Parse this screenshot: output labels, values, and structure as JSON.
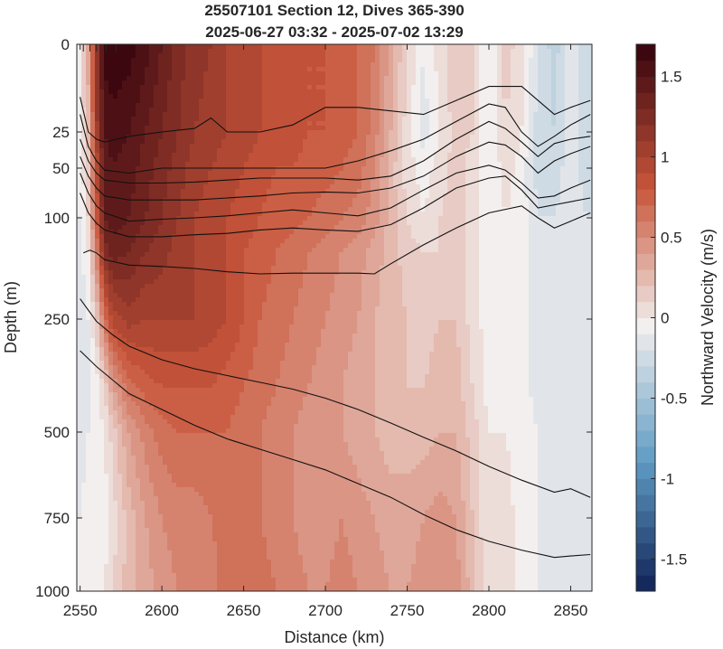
{
  "chart_data": {
    "type": "heatmap",
    "title": [
      "25507101 Section 12, Dives 365-390",
      "2025-06-27 03:32 - 2025-07-02 13:29"
    ],
    "xlabel": "Distance (km)",
    "ylabel": "Depth (m)",
    "xlim": [
      2548,
      2863
    ],
    "ylim_depth_ticks": [
      0,
      25,
      50,
      100,
      250,
      500,
      750,
      1000
    ],
    "xticks": [
      2550,
      2600,
      2650,
      2700,
      2750,
      2800,
      2850
    ],
    "colorbar": {
      "label": "Northward Velocity (m/s)",
      "range": [
        -1.7,
        1.7
      ],
      "ticks": [
        -1.5,
        -1,
        -0.5,
        0,
        0.5,
        1,
        1.5
      ],
      "tick_labels": [
        "-1.5",
        "-1",
        "-0.5",
        "0",
        "0.5",
        "1",
        "1.5"
      ],
      "colors": {
        "negative_end": "#0b1a4f",
        "mid_blue": "#5e9bc4",
        "zero": "#f2efee",
        "mid_red": "#c9563a",
        "positive_end": "#3d0710"
      }
    },
    "field": {
      "x": [
        2550,
        2555,
        2560,
        2565,
        2570,
        2580,
        2590,
        2600,
        2610,
        2620,
        2630,
        2640,
        2650,
        2660,
        2670,
        2680,
        2690,
        2700,
        2710,
        2720,
        2730,
        2740,
        2750,
        2760,
        2770,
        2780,
        2790,
        2800,
        2810,
        2820,
        2830,
        2840,
        2850,
        2860
      ],
      "depth": [
        0,
        25,
        50,
        100,
        150,
        250,
        400,
        500,
        750,
        1000
      ],
      "values": [
        [
          0.05,
          0.4,
          1.2,
          1.7,
          1.75,
          1.7,
          1.6,
          1.45,
          1.3,
          1.2,
          1.15,
          1.05,
          1.0,
          0.95,
          0.9,
          0.9,
          0.85,
          0.85,
          0.8,
          0.75,
          0.65,
          0.4,
          0.15,
          -0.05,
          0.1,
          0.25,
          0.15,
          -0.05,
          0.2,
          0.1,
          -0.15,
          -0.3,
          -0.1,
          -0.2
        ],
        [
          0.0,
          0.3,
          1.1,
          1.55,
          1.6,
          1.55,
          1.45,
          1.35,
          1.25,
          1.15,
          1.1,
          1.05,
          1.0,
          0.95,
          0.9,
          0.9,
          0.85,
          0.85,
          0.8,
          0.75,
          0.6,
          0.35,
          0.1,
          -0.1,
          0.05,
          0.2,
          0.15,
          -0.05,
          0.15,
          0.05,
          -0.2,
          -0.25,
          -0.1,
          -0.2
        ],
        [
          -0.05,
          0.2,
          0.95,
          1.5,
          1.55,
          1.5,
          1.4,
          1.3,
          1.2,
          1.1,
          1.05,
          1.0,
          0.95,
          0.9,
          0.85,
          0.85,
          0.8,
          0.8,
          0.75,
          0.7,
          0.55,
          0.3,
          0.1,
          0.0,
          0.1,
          0.2,
          0.1,
          -0.05,
          0.1,
          0.0,
          -0.2,
          -0.2,
          -0.1,
          -0.2
        ],
        [
          -0.05,
          0.15,
          0.85,
          1.45,
          1.5,
          1.45,
          1.35,
          1.25,
          1.15,
          1.05,
          1.0,
          0.95,
          0.9,
          0.85,
          0.8,
          0.8,
          0.75,
          0.7,
          0.65,
          0.6,
          0.5,
          0.3,
          0.15,
          0.05,
          0.15,
          0.2,
          0.1,
          -0.05,
          0.05,
          0.0,
          -0.15,
          -0.15,
          -0.1,
          -0.15
        ],
        [
          -0.1,
          0.05,
          0.6,
          1.3,
          1.4,
          1.35,
          1.25,
          1.2,
          1.1,
          1.05,
          1.0,
          0.95,
          0.85,
          0.8,
          0.75,
          0.7,
          0.65,
          0.6,
          0.55,
          0.5,
          0.4,
          0.3,
          0.2,
          0.15,
          0.15,
          0.2,
          0.1,
          0.0,
          0.05,
          0.0,
          -0.1,
          -0.15,
          -0.1,
          -0.1
        ],
        [
          -0.1,
          -0.05,
          0.2,
          0.7,
          1.0,
          1.1,
          1.05,
          1.05,
          1.05,
          1.05,
          1.0,
          0.95,
          0.85,
          0.75,
          0.7,
          0.65,
          0.6,
          0.55,
          0.5,
          0.45,
          0.35,
          0.3,
          0.25,
          0.2,
          0.25,
          0.25,
          0.1,
          0.0,
          0.05,
          0.0,
          -0.1,
          -0.1,
          -0.1,
          -0.1
        ],
        [
          -0.15,
          -0.1,
          0.0,
          0.15,
          0.45,
          0.7,
          0.8,
          0.85,
          0.85,
          0.85,
          0.85,
          0.8,
          0.75,
          0.7,
          0.65,
          0.6,
          0.55,
          0.5,
          0.45,
          0.4,
          0.35,
          0.3,
          0.25,
          0.25,
          0.3,
          0.3,
          0.15,
          0.0,
          0.05,
          0.0,
          -0.1,
          -0.1,
          -0.15,
          -0.1
        ],
        [
          -0.1,
          -0.05,
          0.0,
          0.05,
          0.2,
          0.45,
          0.6,
          0.7,
          0.75,
          0.75,
          0.75,
          0.75,
          0.7,
          0.65,
          0.6,
          0.55,
          0.5,
          0.5,
          0.45,
          0.4,
          0.35,
          0.3,
          0.3,
          0.3,
          0.35,
          0.35,
          0.2,
          0.05,
          0.05,
          0.0,
          -0.05,
          -0.1,
          -0.15,
          -0.1
        ],
        [
          -0.05,
          0.0,
          -0.05,
          0.0,
          0.1,
          0.3,
          0.45,
          0.55,
          0.6,
          0.6,
          0.65,
          0.7,
          0.7,
          0.65,
          0.6,
          0.55,
          0.5,
          0.5,
          0.55,
          0.5,
          0.45,
          0.4,
          0.4,
          0.45,
          0.5,
          0.45,
          0.25,
          0.05,
          0.1,
          0.0,
          -0.05,
          -0.1,
          -0.15,
          -0.15
        ],
        [
          0.0,
          0.05,
          0.0,
          0.05,
          0.15,
          0.3,
          0.4,
          0.5,
          0.55,
          0.55,
          0.6,
          0.7,
          0.75,
          0.7,
          0.65,
          0.6,
          0.55,
          0.55,
          0.6,
          0.55,
          0.5,
          0.45,
          0.45,
          0.5,
          0.55,
          0.5,
          0.3,
          0.05,
          0.1,
          0.0,
          -0.05,
          -0.1,
          -0.1,
          -0.15
        ]
      ]
    },
    "contours": [
      {
        "x": [
          2550,
          2555,
          2560,
          2565,
          2580,
          2600,
          2620,
          2630,
          2640,
          2660,
          2680,
          2700,
          2720,
          2740,
          2760,
          2780,
          2800,
          2820,
          2840,
          2850,
          2862
        ],
        "depth": [
          15,
          25,
          30,
          32,
          28,
          25,
          24,
          21,
          25,
          25,
          23,
          18,
          18,
          19,
          20,
          16,
          12,
          12,
          20,
          18,
          16
        ]
      },
      {
        "x": [
          2550,
          2555,
          2560,
          2565,
          2580,
          2600,
          2620,
          2640,
          2660,
          2680,
          2700,
          2720,
          2740,
          2760,
          2780,
          2800,
          2810,
          2820,
          2830,
          2840,
          2850,
          2862
        ],
        "depth": [
          20,
          35,
          45,
          52,
          55,
          50,
          50,
          50,
          50,
          50,
          50,
          45,
          38,
          30,
          22,
          17,
          18,
          25,
          35,
          28,
          23,
          20
        ]
      },
      {
        "x": [
          2550,
          2555,
          2560,
          2565,
          2580,
          2600,
          2620,
          2640,
          2660,
          2680,
          2700,
          2720,
          2740,
          2760,
          2780,
          2800,
          2810,
          2820,
          2830,
          2840,
          2850,
          2862
        ],
        "depth": [
          30,
          45,
          55,
          62,
          65,
          65,
          64,
          62,
          60,
          60,
          60,
          62,
          58,
          45,
          30,
          22,
          24,
          32,
          42,
          33,
          30,
          28
        ]
      },
      {
        "x": [
          2550,
          2555,
          2560,
          2565,
          2580,
          2600,
          2620,
          2640,
          2660,
          2680,
          2700,
          2720,
          2740,
          2760,
          2780,
          2800,
          2810,
          2820,
          2830,
          2840,
          2850,
          2862
        ],
        "depth": [
          42,
          58,
          70,
          78,
          82,
          82,
          82,
          80,
          78,
          75,
          74,
          75,
          70,
          58,
          42,
          32,
          34,
          42,
          55,
          45,
          40,
          35
        ]
      },
      {
        "x": [
          2550,
          2555,
          2560,
          2565,
          2580,
          2600,
          2620,
          2640,
          2660,
          2680,
          2700,
          2720,
          2740,
          2760,
          2780,
          2800,
          2810,
          2820,
          2830,
          2840,
          2850,
          2862
        ],
        "depth": [
          55,
          75,
          88,
          95,
          105,
          102,
          100,
          98,
          95,
          92,
          95,
          98,
          90,
          72,
          55,
          48,
          52,
          65,
          80,
          78,
          70,
          62
        ]
      },
      {
        "x": [
          2550,
          2555,
          2560,
          2565,
          2580,
          2600,
          2620,
          2640,
          2660,
          2680,
          2700,
          2720,
          2740,
          2760,
          2780,
          2800,
          2810,
          2820,
          2830,
          2862
        ],
        "depth": [
          75,
          95,
          108,
          118,
          128,
          128,
          125,
          123,
          118,
          115,
          118,
          120,
          110,
          90,
          70,
          60,
          58,
          72,
          90,
          80
        ]
      },
      {
        "x": [
          2552,
          2556,
          2560,
          2565,
          2580,
          2600,
          2620,
          2640,
          2660,
          2680,
          2700,
          2720,
          2730,
          2740,
          2760,
          2780,
          2800,
          2820,
          2830,
          2840,
          2850,
          2862
        ],
        "depth": [
          152,
          148,
          152,
          162,
          170,
          172,
          175,
          180,
          183,
          182,
          182,
          182,
          183,
          168,
          140,
          115,
          95,
          88,
          100,
          115,
          105,
          95
        ]
      },
      {
        "x": [
          2550,
          2560,
          2570,
          2580,
          2600,
          2620,
          2640,
          2660,
          2680,
          2700,
          2720,
          2740,
          2760,
          2780,
          2800,
          2820,
          2840,
          2850,
          2862
        ],
        "depth": [
          220,
          255,
          285,
          310,
          340,
          360,
          375,
          390,
          405,
          425,
          450,
          480,
          515,
          555,
          600,
          640,
          675,
          665,
          690
        ]
      },
      {
        "x": [
          2550,
          2560,
          2570,
          2580,
          2600,
          2620,
          2640,
          2660,
          2680,
          2700,
          2720,
          2740,
          2760,
          2780,
          2800,
          2820,
          2840,
          2850,
          2862
        ],
        "depth": [
          320,
          355,
          385,
          415,
          450,
          485,
          520,
          550,
          580,
          610,
          650,
          690,
          740,
          790,
          830,
          860,
          885,
          880,
          875
        ]
      }
    ]
  }
}
